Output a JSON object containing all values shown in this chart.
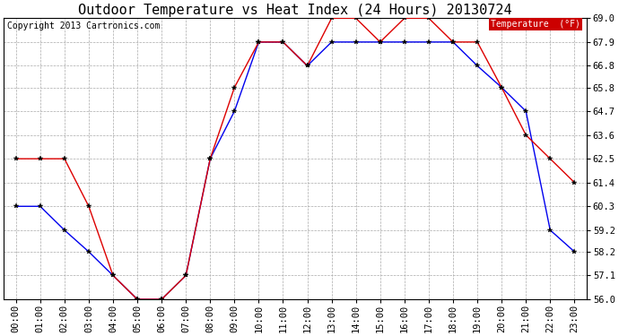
{
  "title": "Outdoor Temperature vs Heat Index (24 Hours) 20130724",
  "copyright": "Copyright 2013 Cartronics.com",
  "hours": [
    "00:00",
    "01:00",
    "02:00",
    "03:00",
    "04:00",
    "05:00",
    "06:00",
    "07:00",
    "08:00",
    "09:00",
    "10:00",
    "11:00",
    "12:00",
    "13:00",
    "14:00",
    "15:00",
    "16:00",
    "17:00",
    "18:00",
    "19:00",
    "20:00",
    "21:00",
    "22:00",
    "23:00"
  ],
  "heat_index": [
    60.3,
    60.3,
    59.2,
    58.2,
    57.1,
    56.0,
    56.0,
    57.1,
    62.5,
    64.7,
    67.9,
    67.9,
    66.8,
    67.9,
    67.9,
    67.9,
    67.9,
    67.9,
    67.9,
    66.8,
    65.8,
    64.7,
    59.2,
    58.2
  ],
  "temperature": [
    62.5,
    62.5,
    62.5,
    60.3,
    57.1,
    56.0,
    56.0,
    57.1,
    62.5,
    65.8,
    67.9,
    67.9,
    66.8,
    69.0,
    69.0,
    67.9,
    69.0,
    69.0,
    67.9,
    67.9,
    65.8,
    63.6,
    62.5,
    61.4
  ],
  "ylim": [
    56.0,
    69.0
  ],
  "yticks": [
    56.0,
    57.1,
    58.2,
    59.2,
    60.3,
    61.4,
    62.5,
    63.6,
    64.7,
    65.8,
    66.8,
    67.9,
    69.0
  ],
  "heat_index_color": "#0000ee",
  "temperature_color": "#dd0000",
  "background_color": "#ffffff",
  "grid_color": "#aaaaaa",
  "legend_heat_bg": "#0000cc",
  "legend_temp_bg": "#cc0000",
  "title_fontsize": 11,
  "axis_fontsize": 7.5,
  "copyright_fontsize": 7
}
